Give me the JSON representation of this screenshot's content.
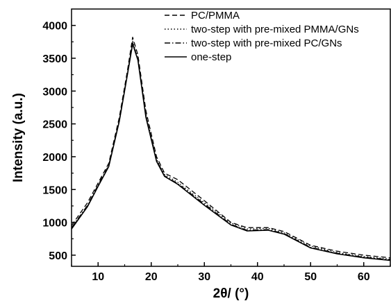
{
  "chart_data": {
    "type": "line",
    "title": "",
    "xlabel": "2θ/ (°)",
    "ylabel": "Intensity (a.u.)",
    "xlim": [
      5,
      65
    ],
    "ylim": [
      330,
      4250
    ],
    "xticks": [
      10,
      20,
      30,
      40,
      50,
      60
    ],
    "yticks": [
      500,
      1000,
      1500,
      2000,
      2500,
      3000,
      3500,
      4000
    ],
    "grid": false,
    "legend_position": "top-right",
    "series": [
      {
        "name": "PC/PMMA",
        "style": "dashed",
        "color": "#000000",
        "x": [
          5,
          8,
          10,
          12,
          14,
          15.5,
          16.5,
          17.5,
          19,
          21,
          22.5,
          25,
          30,
          35,
          38,
          42,
          45,
          50,
          55,
          60,
          65
        ],
        "y": [
          950,
          1300,
          1600,
          1900,
          2600,
          3300,
          3820,
          3550,
          2700,
          2000,
          1750,
          1650,
          1330,
          1000,
          920,
          920,
          860,
          650,
          560,
          500,
          460
        ]
      },
      {
        "name": "two-step with pre-mixed PMMA/GNs",
        "style": "dotted",
        "color": "#000000",
        "x": [
          5,
          8,
          10,
          12,
          14,
          15.5,
          16.5,
          17.5,
          19,
          21,
          22.5,
          25,
          30,
          35,
          38,
          42,
          45,
          50,
          55,
          60,
          65
        ],
        "y": [
          910,
          1250,
          1560,
          1860,
          2550,
          3250,
          3760,
          3500,
          2650,
          1960,
          1730,
          1610,
          1300,
          990,
          900,
          910,
          840,
          640,
          540,
          480,
          440
        ]
      },
      {
        "name": "two-step with pre-mixed PC/GNs",
        "style": "dashdot",
        "color": "#000000",
        "x": [
          5,
          8,
          10,
          12,
          14,
          15.5,
          16.5,
          17.5,
          19,
          21,
          22.5,
          25,
          30,
          35,
          38,
          42,
          45,
          50,
          55,
          60,
          65
        ],
        "y": [
          920,
          1260,
          1570,
          1870,
          2560,
          3260,
          3740,
          3480,
          2620,
          1950,
          1710,
          1590,
          1280,
          970,
          880,
          890,
          830,
          620,
          530,
          470,
          430
        ]
      },
      {
        "name": "one-step",
        "style": "solid",
        "color": "#000000",
        "x": [
          5,
          8,
          10,
          12,
          14,
          15.5,
          16.5,
          17.5,
          19,
          21,
          22.5,
          25,
          30,
          35,
          38,
          42,
          45,
          50,
          55,
          60,
          65
        ],
        "y": [
          900,
          1240,
          1550,
          1850,
          2540,
          3240,
          3720,
          3470,
          2600,
          1930,
          1700,
          1580,
          1260,
          960,
          870,
          880,
          820,
          610,
          520,
          460,
          420
        ]
      }
    ]
  }
}
